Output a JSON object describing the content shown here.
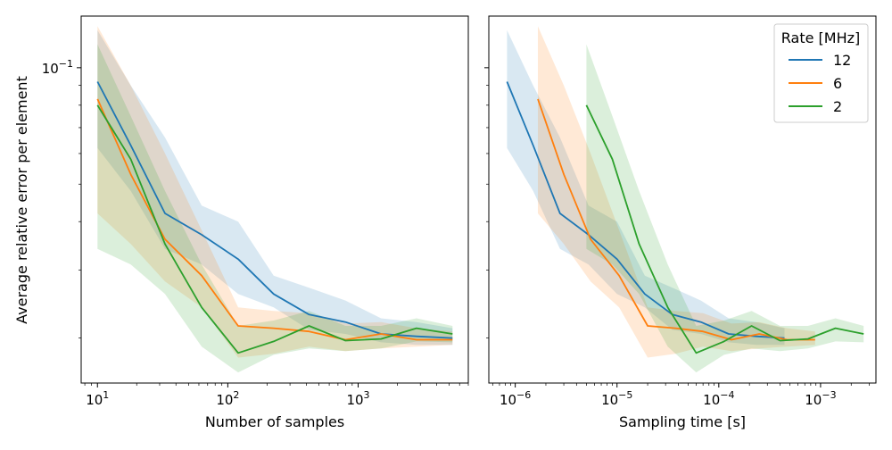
{
  "chart_data": [
    {
      "type": "line",
      "xscale": "log",
      "yscale": "log",
      "xlabel": "Number of samples",
      "ylabel": "Average relative error per element",
      "xlim": [
        7.5,
        7000
      ],
      "ylim": [
        0.0153,
        0.136
      ],
      "xticks": [
        {
          "value": 10,
          "base": "10",
          "exp": "1"
        },
        {
          "value": 100,
          "base": "10",
          "exp": "2"
        },
        {
          "value": 1000,
          "base": "10",
          "exp": "3"
        }
      ],
      "yticks": [
        {
          "value": 0.1,
          "base": "10",
          "exp": "−1"
        }
      ],
      "series": [
        {
          "name": "12",
          "color": "#1f77b4",
          "x": [
            10,
            18,
            33,
            63,
            120,
            225,
            420,
            800,
            1500,
            2800,
            5300
          ],
          "y": [
            0.092,
            0.063,
            0.042,
            0.037,
            0.032,
            0.026,
            0.023,
            0.022,
            0.0205,
            0.0202,
            0.02
          ],
          "lower": [
            0.062,
            0.048,
            0.034,
            0.031,
            0.026,
            0.024,
            0.021,
            0.0205,
            0.0195,
            0.0192,
            0.0192
          ],
          "upper": [
            0.125,
            0.09,
            0.066,
            0.044,
            0.04,
            0.029,
            0.027,
            0.025,
            0.0225,
            0.022,
            0.0212
          ]
        },
        {
          "name": "6",
          "color": "#ff7f0e",
          "x": [
            10,
            18,
            33,
            63,
            120,
            225,
            420,
            800,
            1500,
            2800,
            5300
          ],
          "y": [
            0.083,
            0.053,
            0.036,
            0.029,
            0.0215,
            0.0212,
            0.0208,
            0.0198,
            0.0205,
            0.0198,
            0.0198
          ],
          "lower": [
            0.042,
            0.035,
            0.028,
            0.024,
            0.0178,
            0.0182,
            0.019,
            0.0185,
            0.0188,
            0.019,
            0.0192
          ],
          "upper": [
            0.128,
            0.09,
            0.06,
            0.038,
            0.024,
            0.0235,
            0.0232,
            0.0218,
            0.022,
            0.0212,
            0.0208
          ]
        },
        {
          "name": "2",
          "color": "#2ca02c",
          "x": [
            10,
            18,
            33,
            63,
            120,
            225,
            420,
            800,
            1500,
            2800,
            5300
          ],
          "y": [
            0.08,
            0.058,
            0.035,
            0.024,
            0.0183,
            0.0196,
            0.0215,
            0.0197,
            0.0199,
            0.0212,
            0.0205
          ],
          "lower": [
            0.034,
            0.031,
            0.026,
            0.019,
            0.0163,
            0.0181,
            0.0188,
            0.0185,
            0.0188,
            0.0196,
            0.0195
          ],
          "upper": [
            0.115,
            0.075,
            0.048,
            0.031,
            0.0215,
            0.0222,
            0.0235,
            0.0215,
            0.0215,
            0.0225,
            0.0215
          ]
        }
      ]
    },
    {
      "type": "line",
      "xscale": "log",
      "yscale": "log",
      "xlabel": "Sampling time [s]",
      "ylabel": "",
      "xlim": [
        5.5e-07,
        0.0035
      ],
      "ylim": [
        0.0153,
        0.136
      ],
      "xticks": [
        {
          "value": 1e-06,
          "base": "10",
          "exp": "−6"
        },
        {
          "value": 1e-05,
          "base": "10",
          "exp": "−5"
        },
        {
          "value": 0.0001,
          "base": "10",
          "exp": "−4"
        },
        {
          "value": 0.001,
          "base": "10",
          "exp": "−3"
        }
      ],
      "legend": {
        "title": "Rate [MHz]",
        "position": "top-right"
      },
      "series": [
        {
          "name": "12",
          "color": "#1f77b4",
          "x": [
            8.3e-07,
            1.5e-06,
            2.75e-06,
            5.25e-06,
            1e-05,
            1.875e-05,
            3.5e-05,
            6.67e-05,
            0.000125,
            0.000233,
            0.000442
          ],
          "y": [
            0.092,
            0.063,
            0.042,
            0.037,
            0.032,
            0.026,
            0.023,
            0.022,
            0.0205,
            0.0202,
            0.02
          ],
          "lower": [
            0.062,
            0.048,
            0.034,
            0.031,
            0.026,
            0.024,
            0.021,
            0.0205,
            0.0195,
            0.0192,
            0.0192
          ],
          "upper": [
            0.125,
            0.09,
            0.066,
            0.044,
            0.04,
            0.029,
            0.027,
            0.025,
            0.0225,
            0.022,
            0.0212
          ]
        },
        {
          "name": "6",
          "color": "#ff7f0e",
          "x": [
            1.67e-06,
            3e-06,
            5.5e-06,
            1.05e-05,
            2e-05,
            3.75e-05,
            7e-05,
            0.000133,
            0.00025,
            0.000467,
            0.000883
          ],
          "y": [
            0.083,
            0.053,
            0.036,
            0.029,
            0.0215,
            0.0212,
            0.0208,
            0.0198,
            0.0205,
            0.0198,
            0.0198
          ],
          "lower": [
            0.042,
            0.035,
            0.028,
            0.024,
            0.0178,
            0.0182,
            0.019,
            0.0185,
            0.0188,
            0.019,
            0.0192
          ],
          "upper": [
            0.128,
            0.09,
            0.06,
            0.038,
            0.024,
            0.0235,
            0.0232,
            0.0218,
            0.022,
            0.0212,
            0.0208
          ]
        },
        {
          "name": "2",
          "color": "#2ca02c",
          "x": [
            5e-06,
            9e-06,
            1.65e-05,
            3.15e-05,
            6e-05,
            0.0001125,
            0.00021,
            0.0004,
            0.00075,
            0.0014,
            0.00265
          ],
          "y": [
            0.08,
            0.058,
            0.035,
            0.024,
            0.0183,
            0.0196,
            0.0215,
            0.0197,
            0.0199,
            0.0212,
            0.0205
          ],
          "lower": [
            0.034,
            0.031,
            0.026,
            0.019,
            0.0163,
            0.0181,
            0.0188,
            0.0185,
            0.0188,
            0.0196,
            0.0195
          ],
          "upper": [
            0.115,
            0.075,
            0.048,
            0.031,
            0.0215,
            0.0222,
            0.0235,
            0.0215,
            0.0215,
            0.0225,
            0.0215
          ]
        }
      ]
    }
  ]
}
